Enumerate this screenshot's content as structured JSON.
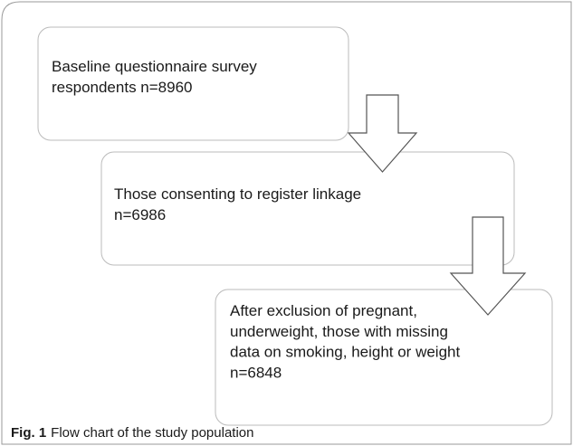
{
  "nodes": [
    {
      "lines": [
        "Baseline questionnaire survey",
        "respondents n=8960"
      ]
    },
    {
      "lines": [
        "Those consenting to register linkage",
        "n=6986"
      ]
    },
    {
      "lines": [
        "After exclusion of pregnant,",
        "underweight, those with missing",
        "data on smoking, height or weight",
        "n=6848"
      ]
    }
  ],
  "caption": {
    "label": "Fig. 1",
    "text": "Flow chart of the study population"
  }
}
